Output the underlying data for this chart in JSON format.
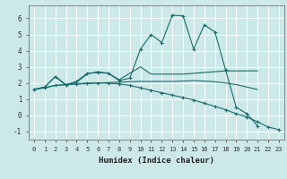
{
  "xlabel": "Humidex (Indice chaleur)",
  "xlim": [
    -0.5,
    23.5
  ],
  "ylim": [
    -1.5,
    6.8
  ],
  "xticks": [
    0,
    1,
    2,
    3,
    4,
    5,
    6,
    7,
    8,
    9,
    10,
    11,
    12,
    13,
    14,
    15,
    16,
    17,
    18,
    19,
    20,
    21,
    22,
    23
  ],
  "yticks": [
    -1,
    0,
    1,
    2,
    3,
    4,
    5,
    6
  ],
  "bg_color": "#cce8e8",
  "grid_color": "#ffffff",
  "line_color": "#1a6b6b",
  "line1_x": [
    0,
    1,
    2,
    3,
    4,
    5,
    6,
    7,
    8,
    9,
    10,
    11,
    12,
    13,
    14,
    15,
    16,
    17,
    18,
    19,
    20,
    21
  ],
  "line1_y": [
    1.6,
    1.75,
    2.4,
    1.9,
    2.1,
    2.6,
    2.65,
    2.6,
    2.15,
    2.3,
    4.1,
    5.0,
    4.5,
    6.2,
    6.15,
    4.1,
    5.6,
    5.15,
    2.8,
    0.5,
    0.1,
    -0.65
  ],
  "line2_x": [
    0,
    1,
    2,
    3,
    4,
    5,
    6,
    7,
    8,
    9,
    10,
    11,
    12,
    13,
    14,
    15,
    16,
    17,
    18,
    19,
    20,
    21
  ],
  "line2_y": [
    1.6,
    1.75,
    2.4,
    1.85,
    2.05,
    2.55,
    2.7,
    2.6,
    2.2,
    2.6,
    3.0,
    2.55,
    2.55,
    2.55,
    2.55,
    2.6,
    2.65,
    2.7,
    2.75,
    2.75,
    2.75,
    2.75
  ],
  "line3_x": [
    0,
    1,
    2,
    3,
    4,
    5,
    6,
    7,
    8,
    9,
    10,
    11,
    12,
    13,
    14,
    15,
    16,
    17,
    18,
    19,
    20,
    21
  ],
  "line3_y": [
    1.6,
    1.72,
    1.85,
    1.9,
    1.93,
    1.96,
    2.0,
    2.03,
    2.05,
    2.08,
    2.1,
    2.1,
    2.1,
    2.1,
    2.12,
    2.15,
    2.12,
    2.08,
    2.0,
    1.9,
    1.75,
    1.6
  ],
  "line4_x": [
    0,
    1,
    2,
    3,
    4,
    5,
    6,
    7,
    8,
    9,
    10,
    11,
    12,
    13,
    14,
    15,
    16,
    17,
    18,
    19,
    20,
    21,
    22,
    23
  ],
  "line4_y": [
    1.6,
    1.7,
    1.85,
    1.9,
    1.95,
    2.0,
    2.0,
    1.98,
    1.95,
    1.85,
    1.7,
    1.55,
    1.4,
    1.25,
    1.1,
    0.95,
    0.75,
    0.55,
    0.35,
    0.1,
    -0.1,
    -0.4,
    -0.72,
    -0.88
  ]
}
